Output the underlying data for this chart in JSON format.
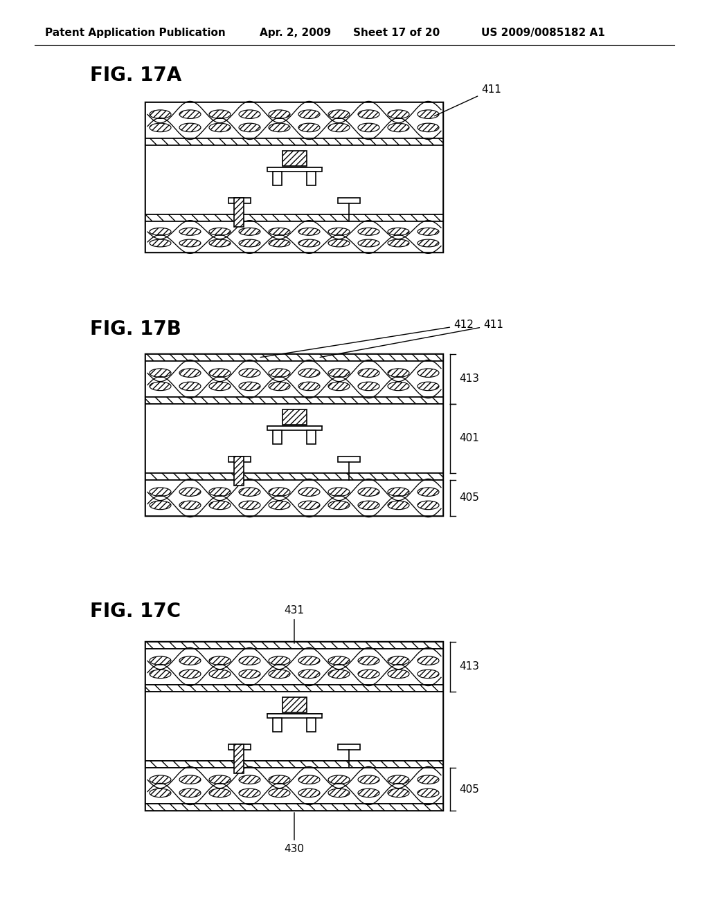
{
  "title_header": "Patent Application Publication",
  "date_header": "Apr. 2, 2009",
  "sheet_header": "Sheet 17 of 20",
  "patent_header": "US 2009/0085182 A1",
  "fig17a_label": "FIG. 17A",
  "fig17b_label": "FIG. 17B",
  "fig17c_label": "FIG. 17C",
  "background_color": "#ffffff",
  "line_color": "#000000",
  "fig_label_fontsize": 20,
  "header_fontsize": 11
}
